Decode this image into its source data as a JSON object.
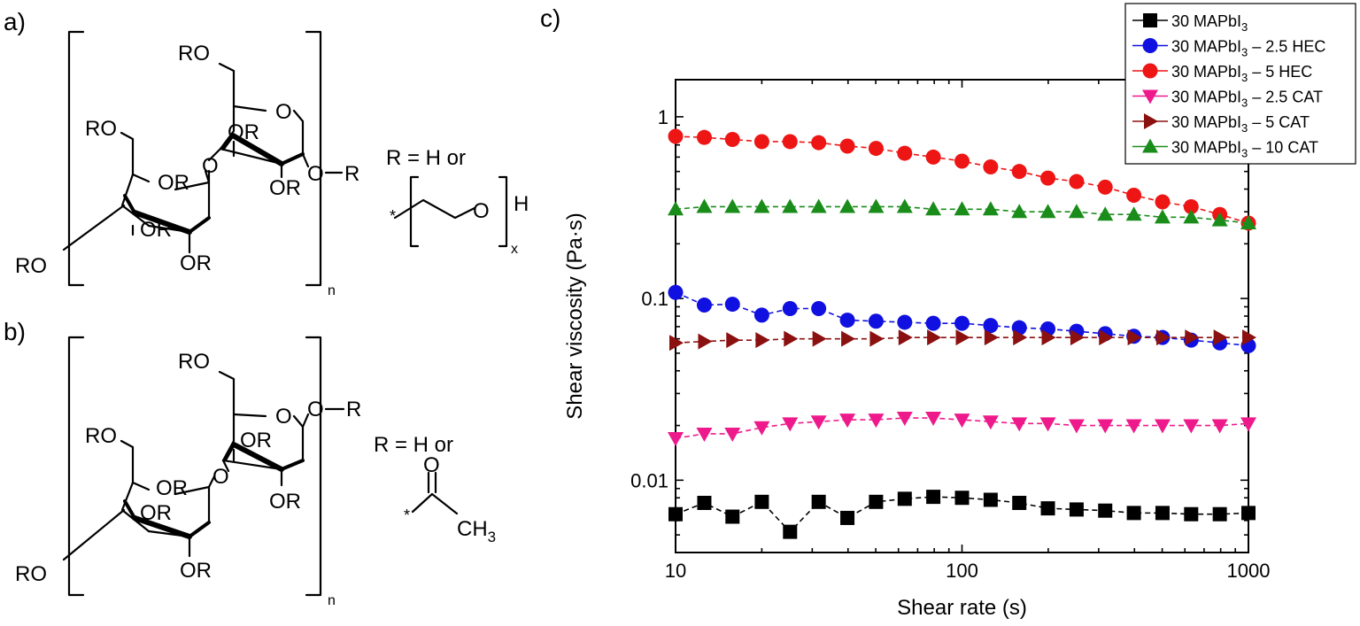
{
  "panels": {
    "a": {
      "label": "a)",
      "groups": [
        "RO",
        "RO",
        "O",
        "OR",
        "OR",
        "O",
        "OR",
        "OR",
        "OR",
        "RO",
        "O",
        "R"
      ],
      "repeat_subscript": "n",
      "r_definition": "R = H or",
      "chain_star": "*",
      "chain_O": "O",
      "chain_H": "H",
      "chain_subscript": "x"
    },
    "b": {
      "label": "b)",
      "groups": [
        "RO",
        "RO",
        "O",
        "OR",
        "OR",
        "O",
        "OR",
        "OR",
        "OR",
        "RO",
        "O",
        "R"
      ],
      "repeat_subscript": "n",
      "r_definition": "R = H or",
      "acetyl_O": "O",
      "acetyl_star": "*",
      "acetyl_CH": "CH",
      "acetyl_sub": "3"
    },
    "c": {
      "label": "c)"
    }
  },
  "chart_data": {
    "type": "line",
    "title": "",
    "xlabel": "Shear rate (s)",
    "ylabel": "Shear viscosity (Pa·s)",
    "xscale": "log",
    "yscale": "log",
    "xlim": [
      10,
      1000
    ],
    "ylim": [
      0.004,
      1.6
    ],
    "xticks": [
      10,
      100,
      1000
    ],
    "xtick_labels": [
      "10",
      "100",
      "1000"
    ],
    "yticks": [
      0.01,
      0.1,
      1
    ],
    "ytick_labels": [
      "0.01",
      "0.1",
      "1"
    ],
    "grid": false,
    "legend_position": "top-right",
    "x": [
      10,
      12.6,
      15.8,
      20,
      25.1,
      31.6,
      39.8,
      50.1,
      63.1,
      79.4,
      100,
      125.9,
      158.5,
      199.5,
      251.2,
      316.2,
      398.1,
      501.2,
      631,
      794.3,
      1000
    ],
    "series": [
      {
        "legend_prefix": "30 MAPbI",
        "legend_sub": "3",
        "legend_suffix": "",
        "color": "#000000",
        "marker": "square",
        "values": [
          0.0065,
          0.0075,
          0.0063,
          0.0076,
          0.0052,
          0.0076,
          0.0062,
          0.0076,
          0.0079,
          0.0081,
          0.008,
          0.0078,
          0.0075,
          0.007,
          0.0069,
          0.0068,
          0.0066,
          0.0066,
          0.0065,
          0.0065,
          0.0066
        ]
      },
      {
        "legend_prefix": "30 MAPbI",
        "legend_sub": "3",
        "legend_suffix": " – 2.5 HEC",
        "color": "#1010e0",
        "marker": "circle",
        "values": [
          0.108,
          0.092,
          0.093,
          0.081,
          0.088,
          0.088,
          0.076,
          0.075,
          0.074,
          0.073,
          0.073,
          0.071,
          0.069,
          0.068,
          0.066,
          0.064,
          0.062,
          0.061,
          0.059,
          0.057,
          0.055
        ]
      },
      {
        "legend_prefix": "30 MAPbI",
        "legend_sub": "3",
        "legend_suffix": " – 5 HEC",
        "color": "#ee1515",
        "marker": "circle",
        "values": [
          0.78,
          0.77,
          0.75,
          0.73,
          0.73,
          0.72,
          0.69,
          0.67,
          0.63,
          0.6,
          0.57,
          0.53,
          0.5,
          0.46,
          0.44,
          0.41,
          0.37,
          0.34,
          0.32,
          0.29,
          0.26
        ]
      },
      {
        "legend_prefix": "30 MAPbI",
        "legend_sub": "3",
        "legend_suffix": " – 2.5 CAT",
        "color": "#ee1a8c",
        "marker": "triangle-down",
        "values": [
          0.017,
          0.018,
          0.018,
          0.0195,
          0.0205,
          0.021,
          0.0215,
          0.0215,
          0.022,
          0.022,
          0.0215,
          0.021,
          0.0205,
          0.0205,
          0.02,
          0.02,
          0.02,
          0.02,
          0.02,
          0.02,
          0.0205
        ]
      },
      {
        "legend_prefix": "30 MAPbI",
        "legend_sub": "3",
        "legend_suffix": " – 5 CAT",
        "color": "#8b1010",
        "marker": "triangle-right",
        "values": [
          0.057,
          0.058,
          0.059,
          0.059,
          0.06,
          0.06,
          0.06,
          0.06,
          0.061,
          0.061,
          0.061,
          0.061,
          0.061,
          0.061,
          0.061,
          0.061,
          0.061,
          0.061,
          0.061,
          0.061,
          0.061
        ]
      },
      {
        "legend_prefix": "30 MAPbI",
        "legend_sub": "3",
        "legend_suffix": " – 10 CAT",
        "color": "#1a8c1a",
        "marker": "triangle-up",
        "values": [
          0.31,
          0.32,
          0.32,
          0.32,
          0.32,
          0.32,
          0.32,
          0.32,
          0.32,
          0.31,
          0.31,
          0.31,
          0.3,
          0.3,
          0.3,
          0.29,
          0.29,
          0.28,
          0.28,
          0.27,
          0.26
        ]
      }
    ]
  }
}
